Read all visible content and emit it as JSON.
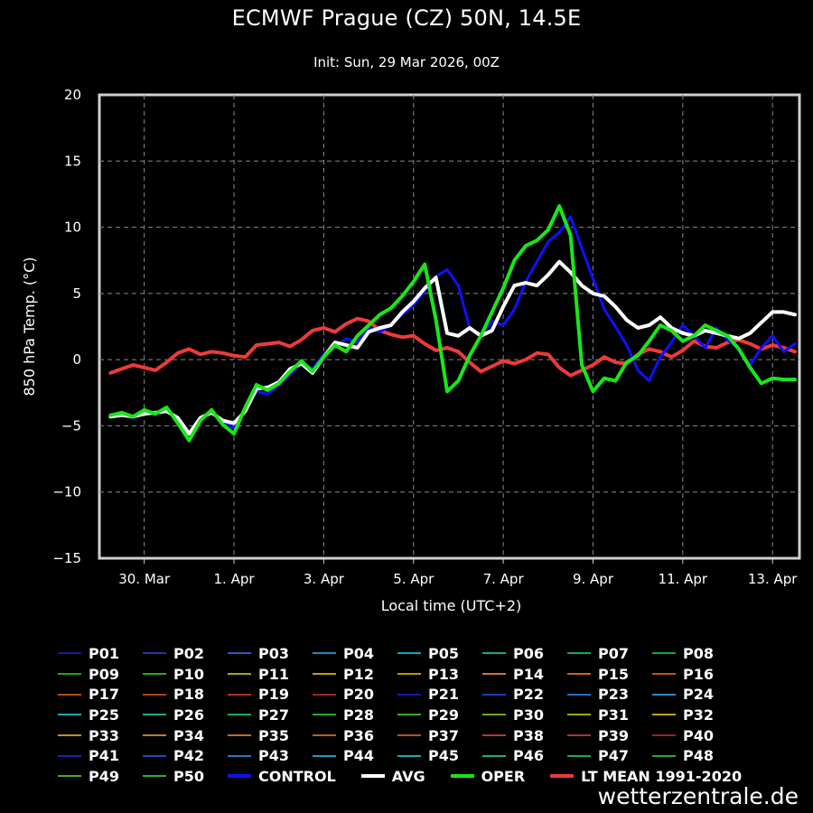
{
  "header": {
    "title": "ECMWF Prague (CZ) 50N, 14.5E",
    "subtitle": "Init: Sun, 29 Mar 2026, 00Z"
  },
  "watermark": "wetterzentrale.de",
  "chart_data": {
    "type": "line",
    "title": "ECMWF Prague (CZ) 50N, 14.5E",
    "subtitle": "Init: Sun, 29 Mar 2026, 00Z",
    "xlabel": "Local time (UTC+2)",
    "ylabel": "850 hPa Temp. (°C)",
    "ylim": [
      -15,
      20
    ],
    "yticks": [
      -15,
      -10,
      -5,
      0,
      5,
      10,
      15,
      20
    ],
    "xticks": [
      "30. Mar",
      "1. Apr",
      "3. Apr",
      "5. Apr",
      "7. Apr",
      "9. Apr",
      "11. Apr",
      "13. Apr"
    ],
    "x_unit": "days since 29 Mar 2026 00Z (local)",
    "xlim": [
      0.0,
      15.6
    ],
    "grid": true,
    "legend_position": "bottom",
    "x": [
      0.25,
      0.5,
      0.75,
      1,
      1.25,
      1.5,
      1.75,
      2,
      2.25,
      2.5,
      2.75,
      3,
      3.25,
      3.5,
      3.75,
      4,
      4.25,
      4.5,
      4.75,
      5,
      5.25,
      5.5,
      5.75,
      6,
      6.25,
      6.5,
      6.75,
      7,
      7.25,
      7.5,
      7.75,
      8,
      8.25,
      8.5,
      8.75,
      9,
      9.25,
      9.5,
      9.75,
      10,
      10.25,
      10.5,
      10.75,
      11,
      11.25,
      11.5,
      11.75,
      12,
      12.25,
      12.5,
      12.75,
      13,
      13.25,
      13.5,
      13.75,
      14,
      14.25,
      14.5,
      14.75,
      15,
      15.25,
      15.5
    ],
    "series": [
      {
        "name": "CONTROL",
        "color": "#1010ff",
        "width": 3,
        "values": [
          -4.2,
          -4.1,
          -4.4,
          -3.9,
          -4.1,
          -3.8,
          -4.6,
          -5.6,
          -4.4,
          -3.9,
          -4.6,
          -5.2,
          -3.8,
          -2.4,
          -2.6,
          -1.9,
          -1.1,
          -0.3,
          -0.7,
          0.4,
          0.9,
          1.6,
          1.3,
          2.4,
          2.1,
          2.6,
          3.4,
          4.1,
          5.2,
          6.3,
          6.8,
          5.6,
          2.4,
          1.8,
          2.9,
          2.6,
          3.8,
          5.9,
          7.4,
          8.9,
          9.6,
          10.8,
          8.4,
          6.1,
          3.8,
          2.5,
          1.1,
          -0.8,
          -1.6,
          0.2,
          1.3,
          2.6,
          1.8,
          0.9,
          2.4,
          1.5,
          0.8,
          -0.4,
          0.9,
          1.8,
          0.6,
          1.2
        ]
      },
      {
        "name": "AVG",
        "color": "#ffffff",
        "width": 4,
        "values": [
          -4.3,
          -4.2,
          -4.3,
          -4.1,
          -4.0,
          -3.9,
          -4.4,
          -5.6,
          -4.4,
          -4.0,
          -4.6,
          -4.8,
          -3.9,
          -2.2,
          -2.1,
          -1.7,
          -0.7,
          -0.3,
          -1.0,
          0.2,
          1.3,
          1.1,
          0.9,
          2.1,
          2.4,
          2.6,
          3.6,
          4.4,
          5.4,
          6.2,
          2.0,
          1.8,
          2.4,
          1.8,
          2.2,
          4.0,
          5.6,
          5.8,
          5.6,
          6.4,
          7.4,
          6.6,
          5.6,
          5.0,
          4.8,
          4.0,
          3.0,
          2.4,
          2.6,
          3.2,
          2.4,
          2.0,
          1.8,
          2.2,
          2.0,
          1.8,
          1.6,
          2.0,
          2.8,
          3.6,
          3.6,
          3.4
        ]
      },
      {
        "name": "OPER",
        "color": "#19e619",
        "width": 4,
        "values": [
          -4.2,
          -4.0,
          -4.3,
          -3.8,
          -4.1,
          -3.6,
          -4.8,
          -6.1,
          -4.6,
          -3.8,
          -4.9,
          -5.6,
          -3.6,
          -1.9,
          -2.3,
          -1.8,
          -0.9,
          -0.1,
          -0.9,
          0.2,
          1.1,
          0.6,
          1.8,
          2.6,
          3.4,
          3.9,
          4.8,
          5.9,
          7.2,
          3.0,
          -2.4,
          -1.6,
          0.3,
          1.8,
          3.6,
          5.4,
          7.5,
          8.6,
          9.0,
          9.8,
          11.6,
          9.4,
          -0.4,
          -2.4,
          -1.4,
          -1.6,
          -0.2,
          0.3,
          1.4,
          2.6,
          2.2,
          1.4,
          1.8,
          2.6,
          2.2,
          1.8,
          0.8,
          -0.6,
          -1.8,
          -1.4,
          -1.5,
          -1.5
        ]
      },
      {
        "name": "LT MEAN 1991-2020",
        "color": "#ee3a3a",
        "width": 4,
        "values": [
          -1.0,
          -0.7,
          -0.4,
          -0.6,
          -0.8,
          -0.2,
          0.5,
          0.8,
          0.4,
          0.6,
          0.5,
          0.3,
          0.2,
          1.1,
          1.2,
          1.3,
          1.0,
          1.5,
          2.2,
          2.4,
          2.1,
          2.7,
          3.1,
          2.9,
          2.2,
          1.9,
          1.7,
          1.8,
          1.2,
          0.7,
          0.9,
          0.6,
          -0.2,
          -0.9,
          -0.5,
          -0.1,
          -0.3,
          0.0,
          0.5,
          0.4,
          -0.6,
          -1.2,
          -0.8,
          -0.4,
          0.2,
          -0.2,
          -0.3,
          0.4,
          0.8,
          0.6,
          0.2,
          0.7,
          1.4,
          1.0,
          0.9,
          1.3,
          1.5,
          1.2,
          0.8,
          1.1,
          0.9,
          0.6
        ]
      }
    ]
  },
  "legend": {
    "members": [
      "P01",
      "P02",
      "P03",
      "P04",
      "P05",
      "P06",
      "P07",
      "P08",
      "P09",
      "P10",
      "P11",
      "P12",
      "P13",
      "P14",
      "P15",
      "P16",
      "P17",
      "P18",
      "P19",
      "P20",
      "P21",
      "P22",
      "P23",
      "P24",
      "P25",
      "P26",
      "P27",
      "P28",
      "P29",
      "P30",
      "P31",
      "P32",
      "P33",
      "P34",
      "P35",
      "P36",
      "P37",
      "P38",
      "P39",
      "P40",
      "P41",
      "P42",
      "P43",
      "P44",
      "P45",
      "P46",
      "P47",
      "P48",
      "P49",
      "P50"
    ],
    "member_colors": [
      "#1a1aa0",
      "#1a3ab0",
      "#1f5fc0",
      "#1f86c8",
      "#17a0c0",
      "#13a88a",
      "#12a860",
      "#12a838",
      "#18a818",
      "#2bac15",
      "#a8a815",
      "#b8a018",
      "#c0901a",
      "#c87a1c",
      "#c8661e",
      "#c0541e",
      "#b84820",
      "#b83a20",
      "#b03020",
      "#a02420",
      "#1818b0",
      "#1c40c0",
      "#2070c8",
      "#2090c8",
      "#20a8b0",
      "#20a888",
      "#20a860",
      "#28a830",
      "#40a820",
      "#70a820",
      "#a0a820",
      "#c0a020",
      "#c09020",
      "#c08020",
      "#c07020",
      "#b86020",
      "#b85028",
      "#b04028",
      "#a83828",
      "#982828",
      "#2020a8",
      "#2848b8",
      "#2878c0",
      "#2898c0",
      "#20a8a8",
      "#20a880",
      "#20a858",
      "#30a830",
      "#50a820",
      "#30b030"
    ],
    "specials": [
      {
        "label": "CONTROL",
        "color": "#1010ff"
      },
      {
        "label": "AVG",
        "color": "#ffffff"
      },
      {
        "label": "OPER",
        "color": "#19e619"
      },
      {
        "label": "LT MEAN 1991-2020",
        "color": "#ee3a3a"
      }
    ]
  }
}
